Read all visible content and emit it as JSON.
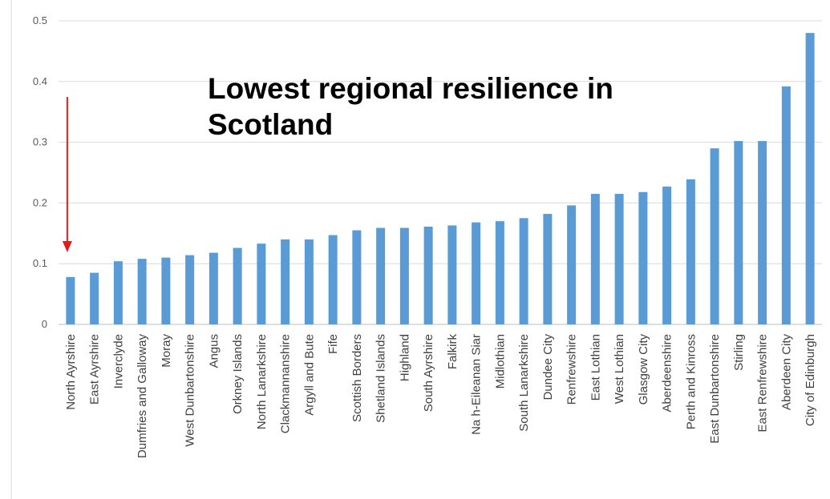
{
  "chart_data": {
    "type": "bar",
    "title": "",
    "xlabel": "",
    "ylabel": "",
    "ylim": [
      0,
      0.5
    ],
    "yticks": [
      "0",
      "0.1",
      "0.2",
      "0.3",
      "0.4",
      "0.5"
    ],
    "grid": true,
    "bar_color": "#5b9bd5",
    "categories": [
      "North Ayrshire",
      "East Ayrshire",
      "Inverclyde",
      "Dumfries and Galloway",
      "Moray",
      "West Dunbartonshire",
      "Angus",
      "Orkney Islands",
      "North Lanarkshire",
      "Clackmannanshire",
      "Argyll and Bute",
      "Fife",
      "Scottish Borders",
      "Shetland Islands",
      "Highland",
      "South Ayrshire",
      "Falkirk",
      "Na h-Eileanan Siar",
      "Midlothian",
      "South Lanarkshire",
      "Dundee City",
      "Renfrewshire",
      "East Lothian",
      "West Lothian",
      "Glasgow City",
      "Aberdeenshire",
      "Perth and Kinross",
      "East Dunbartonshire",
      "Stirling",
      "East Renfrewshire",
      "Aberdeen City",
      "City of Edinburgh"
    ],
    "values": [
      0.078,
      0.085,
      0.104,
      0.108,
      0.11,
      0.114,
      0.118,
      0.126,
      0.133,
      0.14,
      0.14,
      0.147,
      0.155,
      0.159,
      0.159,
      0.161,
      0.163,
      0.168,
      0.17,
      0.175,
      0.182,
      0.196,
      0.215,
      0.215,
      0.218,
      0.227,
      0.239,
      0.29,
      0.302,
      0.302,
      0.392,
      0.48
    ],
    "annotation": {
      "text": "Lowest regional resilience in Scotland",
      "arrow_color": "#e31a1c",
      "arrow_target": "North Ayrshire"
    }
  }
}
